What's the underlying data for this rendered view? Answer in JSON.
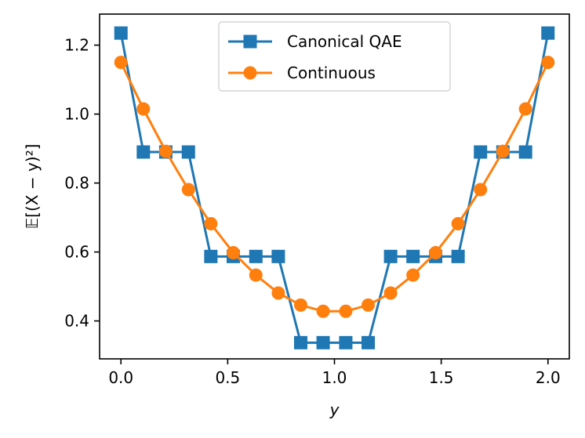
{
  "chart_data": {
    "type": "line",
    "title": "",
    "xlabel": "y",
    "ylabel": "𝔼[(X − y)²]",
    "xlim": [
      -0.1,
      2.1
    ],
    "ylim": [
      0.29,
      1.29
    ],
    "xticks": [
      0.0,
      0.5,
      1.0,
      1.5,
      2.0
    ],
    "xtick_labels": [
      "0.0",
      "0.5",
      "1.0",
      "1.5",
      "2.0"
    ],
    "yticks": [
      0.4,
      0.6,
      0.8,
      1.0,
      1.2
    ],
    "ytick_labels": [
      "0.4",
      "0.6",
      "0.8",
      "1.0",
      "1.2"
    ],
    "grid": false,
    "legend_position": "upper-center",
    "series": [
      {
        "name": "Canonical QAE",
        "color": "#1f77b4",
        "marker": "square",
        "x": [
          0.0,
          0.105,
          0.21,
          0.316,
          0.421,
          0.526,
          0.632,
          0.737,
          0.842,
          0.947,
          1.053,
          1.158,
          1.263,
          1.368,
          1.474,
          1.579,
          1.684,
          1.789,
          1.895,
          2.0
        ],
        "y": [
          1.235,
          0.89,
          0.89,
          0.89,
          0.587,
          0.587,
          0.587,
          0.587,
          0.337,
          0.337,
          0.337,
          0.337,
          0.587,
          0.587,
          0.587,
          0.587,
          0.89,
          0.89,
          0.89,
          1.235
        ]
      },
      {
        "name": "Continuous",
        "color": "#ff7f0e",
        "marker": "circle",
        "x": [
          0.0,
          0.105,
          0.21,
          0.316,
          0.421,
          0.526,
          0.632,
          0.737,
          0.842,
          0.947,
          1.053,
          1.158,
          1.263,
          1.368,
          1.474,
          1.579,
          1.684,
          1.789,
          1.895,
          2.0
        ],
        "y": [
          1.15,
          1.015,
          0.892,
          0.781,
          0.682,
          0.598,
          0.533,
          0.481,
          0.446,
          0.428,
          0.428,
          0.446,
          0.481,
          0.533,
          0.598,
          0.682,
          0.781,
          0.892,
          1.015,
          1.15
        ]
      }
    ]
  }
}
